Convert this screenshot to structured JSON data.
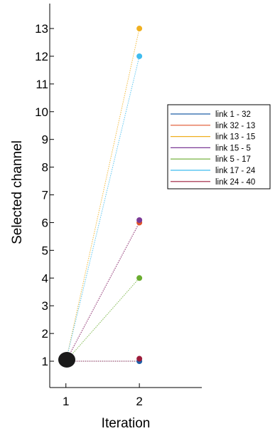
{
  "chart_data": {
    "type": "line",
    "xlabel": "Iteration",
    "ylabel": "Selected channel",
    "x_ticks": [
      1,
      2
    ],
    "y_ticks": [
      1,
      2,
      3,
      4,
      5,
      6,
      7,
      8,
      9,
      10,
      11,
      12,
      13
    ],
    "xlim": [
      0.78,
      2.85
    ],
    "ylim": [
      0.05,
      13.9
    ],
    "legend_position": "right",
    "grid": false,
    "line_style": "dotted",
    "series": [
      {
        "name": "link 1 - 32",
        "color": "#1f5fa8",
        "x": [
          1,
          2
        ],
        "y": [
          1,
          1
        ]
      },
      {
        "name": "link 32 - 13",
        "color": "#e0542b",
        "x": [
          1,
          2
        ],
        "y": [
          1,
          6
        ]
      },
      {
        "name": "link 13 - 15",
        "color": "#f0b020",
        "x": [
          1,
          2
        ],
        "y": [
          1,
          13
        ]
      },
      {
        "name": "link 15 - 5",
        "color": "#7b3a96",
        "x": [
          1,
          2
        ],
        "y": [
          1,
          6
        ]
      },
      {
        "name": "link 5 - 17",
        "color": "#6aac2f",
        "x": [
          1,
          2
        ],
        "y": [
          1,
          4
        ]
      },
      {
        "name": "link 17 - 24",
        "color": "#3fbcef",
        "x": [
          1,
          2
        ],
        "y": [
          1,
          12
        ]
      },
      {
        "name": "link 24 - 40",
        "color": "#9c1c3a",
        "x": [
          1,
          2
        ],
        "y": [
          1,
          1
        ]
      }
    ]
  }
}
